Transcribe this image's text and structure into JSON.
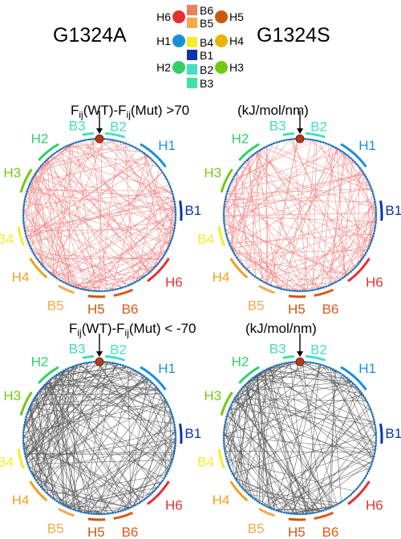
{
  "variants": {
    "left": "G1324A",
    "right": "G1324S"
  },
  "legend": {
    "helices": [
      {
        "name": "H6",
        "color": "#e63030"
      },
      {
        "name": "H5",
        "color": "#c85a10"
      },
      {
        "name": "H1",
        "color": "#1a8fd8"
      },
      {
        "name": "H4",
        "color": "#e8b400"
      },
      {
        "name": "H2",
        "color": "#2fd06a"
      },
      {
        "name": "H3",
        "color": "#74c814"
      }
    ],
    "strands": [
      {
        "name": "B6",
        "color": "#e9825a"
      },
      {
        "name": "B5",
        "color": "#f7a84a"
      },
      {
        "name": "B4",
        "color": "#f2ee2a"
      },
      {
        "name": "B1",
        "color": "#0b34a8"
      },
      {
        "name": "B2",
        "color": "#43e0c4"
      },
      {
        "name": "B3",
        "color": "#3fe3a8"
      }
    ]
  },
  "captions": {
    "top": {
      "lead": "F",
      "sub1": "ij",
      "mid": "(WT)-F",
      "sub2": "ij",
      "tail": "(Mut) >70",
      "unit": "(kJ/mol/nm)"
    },
    "bottom": {
      "lead": "F",
      "sub1": "ij",
      "mid": "(WT)-F",
      "sub2": "ij",
      "tail": "(Mut)  < -70",
      "unit": "(kJ/mol/nm)"
    }
  },
  "segments": [
    {
      "name": "B3",
      "color": "#3fe3a8"
    },
    {
      "name": "B2",
      "color": "#43e0c4"
    },
    {
      "name": "H1",
      "color": "#1a8fd8"
    },
    {
      "name": "B1",
      "color": "#0b34a8"
    },
    {
      "name": "H6",
      "color": "#e63030"
    },
    {
      "name": "B6",
      "color": "#e05a18"
    },
    {
      "name": "H5",
      "color": "#c85a10"
    },
    {
      "name": "B5",
      "color": "#f7a84a"
    },
    {
      "name": "H4",
      "color": "#f0a020"
    },
    {
      "name": "B4",
      "color": "#f2ee2a"
    },
    {
      "name": "H3",
      "color": "#74c814"
    },
    {
      "name": "H2",
      "color": "#2fd06a"
    }
  ],
  "panels": [
    {
      "id": "top-left",
      "variant": "G1324A",
      "condition": ">70",
      "line_color": "#f08080",
      "line_count": 150,
      "seed": 11
    },
    {
      "id": "top-right",
      "variant": "G1324S",
      "condition": ">70",
      "line_color": "#f08080",
      "line_count": 130,
      "seed": 23
    },
    {
      "id": "bottom-left",
      "variant": "G1324A",
      "condition": "< -70",
      "line_color": "#555555",
      "line_count": 190,
      "seed": 37
    },
    {
      "id": "bottom-right",
      "variant": "G1324S",
      "condition": "< -70",
      "line_color": "#555555",
      "line_count": 150,
      "seed": 51
    }
  ],
  "colors": {
    "ring": "#1f6fb8",
    "marker": "#b63a1a"
  }
}
